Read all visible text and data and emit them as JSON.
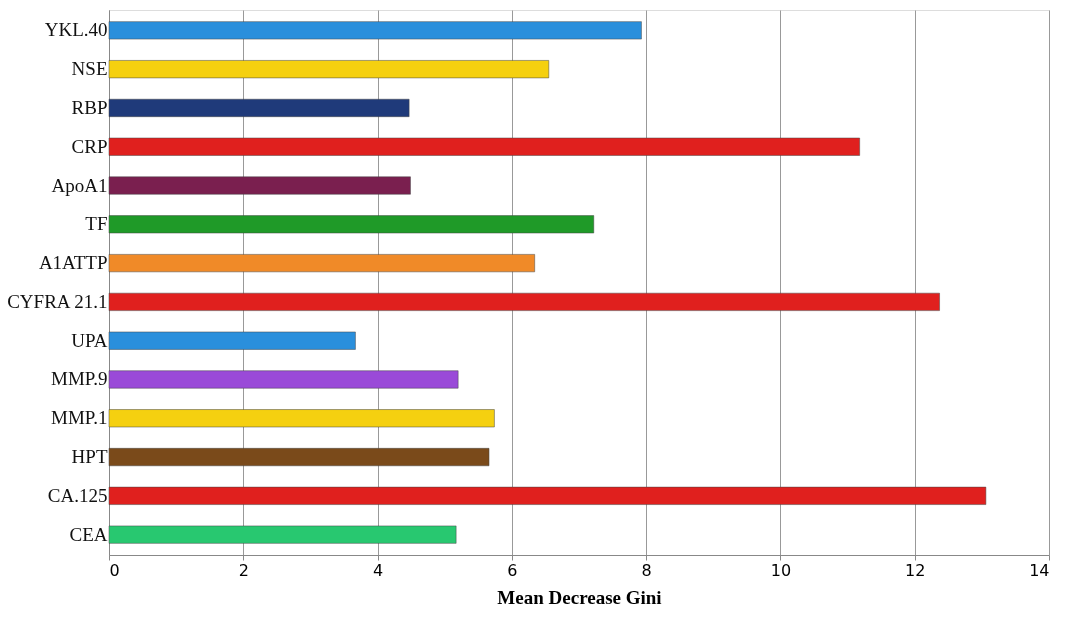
{
  "chart_data": {
    "type": "bar",
    "orientation": "horizontal",
    "xlabel": "Mean Decrease Gini",
    "categories": [
      "YKL.40",
      "NSE",
      "RBP",
      "CRP",
      "ApoA1",
      "TF",
      "A1ATTP",
      "CYFRA 21.1",
      "UPA",
      "MMP.9",
      "MMP.1",
      "HPT",
      "CA.125",
      "CEA"
    ],
    "values": [
      7.93,
      6.55,
      4.47,
      11.18,
      4.49,
      7.22,
      6.34,
      12.37,
      3.67,
      5.2,
      5.74,
      5.66,
      13.06,
      5.17
    ],
    "colors": [
      "#2a8fdc",
      "#f5d010",
      "#1f3a7a",
      "#e0201e",
      "#7a1f4f",
      "#1f9a28",
      "#f08a28",
      "#e0201e",
      "#2a8fdc",
      "#9a4ad8",
      "#f5d010",
      "#7a4a1a",
      "#e0201e",
      "#28c870"
    ],
    "xlim": [
      0,
      14
    ],
    "xticks": [
      0,
      2,
      4,
      6,
      8,
      10,
      12,
      14
    ],
    "grid": "x"
  }
}
